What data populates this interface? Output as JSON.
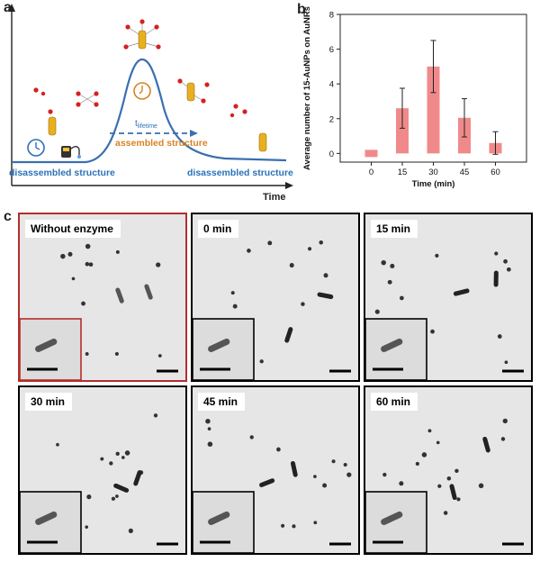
{
  "panel_labels": {
    "a": "a",
    "b": "b",
    "c": "c"
  },
  "schematic": {
    "lifetime_t": "t",
    "lifetime_sub": "lifetime",
    "assembled_label": "assembled structure",
    "disassembled_left": "disassembled structure",
    "disassembled_right": "disassembled structure",
    "x_axis_label": "Time",
    "colors": {
      "curve": "#3a6fb0",
      "assembled": "#d98324",
      "disassembled": "#2a72b8",
      "arrow": "#3a6fb0"
    }
  },
  "chart_data": {
    "type": "bar",
    "categories": [
      "0",
      "15",
      "30",
      "45",
      "60"
    ],
    "values": [
      0.0,
      2.6,
      5.0,
      2.05,
      0.6
    ],
    "errors": [
      0.0,
      1.15,
      1.5,
      1.1,
      0.65
    ],
    "title": "",
    "xlabel": "Time (min)",
    "ylabel": "Average number of 15-AuNPs on AuNRs",
    "ylim": [
      -0.5,
      8
    ],
    "yticks": [
      0,
      2,
      4,
      6,
      8
    ],
    "bar_color": "#f08a8a",
    "grid": false
  },
  "tem_panels": [
    {
      "label": "Without enzyme",
      "border": "#b42d2d"
    },
    {
      "label": "0 min",
      "border": "#000000"
    },
    {
      "label": "15 min",
      "border": "#000000"
    },
    {
      "label": "30 min",
      "border": "#000000"
    },
    {
      "label": "45 min",
      "border": "#000000"
    },
    {
      "label": "60 min",
      "border": "#000000"
    }
  ]
}
